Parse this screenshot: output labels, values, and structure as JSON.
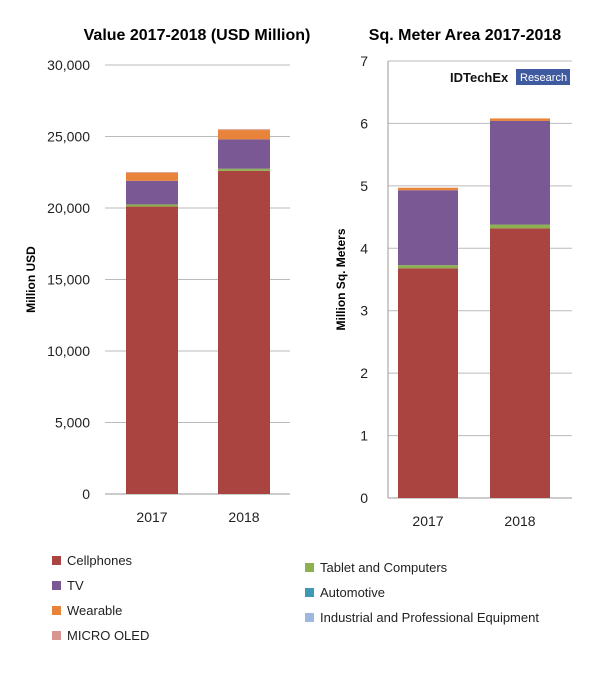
{
  "chart_data": [
    {
      "type": "bar",
      "stacked": true,
      "title": "Value 2017-2018 (USD Million)",
      "xlabel": "",
      "ylabel": "Million USD",
      "ylim": [
        0,
        30000
      ],
      "yticks": [
        "0",
        "5,000",
        "10,000",
        "15,000",
        "20,000",
        "25,000",
        "30,000"
      ],
      "categories": [
        "2017",
        "2018"
      ],
      "grid": true,
      "series": [
        {
          "name": "Cellphones",
          "values": [
            20100,
            22600
          ]
        },
        {
          "name": "Tablet and Computers",
          "values": [
            150,
            150
          ]
        },
        {
          "name": "Automotive",
          "values": [
            0,
            0
          ]
        },
        {
          "name": "Industrial and Professional Equipment",
          "values": [
            0,
            0
          ]
        },
        {
          "name": "TV",
          "values": [
            1650,
            2050
          ]
        },
        {
          "name": "Wearable",
          "values": [
            550,
            650
          ]
        },
        {
          "name": "MICRO OLED",
          "values": [
            60,
            60
          ]
        }
      ]
    },
    {
      "type": "bar",
      "stacked": true,
      "title": "Sq. Meter Area 2017-2018",
      "xlabel": "",
      "ylabel": "Million Sq. Meters",
      "ylim": [
        0,
        7
      ],
      "yticks": [
        "0",
        "1",
        "2",
        "3",
        "4",
        "5",
        "6",
        "7"
      ],
      "categories": [
        "2017",
        "2018"
      ],
      "grid": true,
      "series": [
        {
          "name": "Cellphones",
          "values": [
            3.68,
            4.32
          ]
        },
        {
          "name": "Tablet and Computers",
          "values": [
            0.05,
            0.06
          ]
        },
        {
          "name": "Automotive",
          "values": [
            0,
            0
          ]
        },
        {
          "name": "Industrial and Professional Equipment",
          "values": [
            0,
            0
          ]
        },
        {
          "name": "TV",
          "values": [
            1.2,
            1.66
          ]
        },
        {
          "name": "Wearable",
          "values": [
            0.04,
            0.04
          ]
        },
        {
          "name": "MICRO OLED",
          "values": [
            0,
            0
          ]
        }
      ]
    }
  ],
  "colors": {
    "Cellphones": "#a94441",
    "Tablet and Computers": "#8db050",
    "Automotive": "#3c9ab3",
    "Industrial and Professional Equipment": "#9db7de",
    "TV": "#7a5894",
    "Wearable": "#e8833a",
    "MICRO OLED": "#d9968f"
  },
  "legend": {
    "left": [
      "Cellphones",
      "TV",
      "Wearable",
      "MICRO OLED"
    ],
    "right": [
      "Tablet and Computers",
      "Automotive",
      "Industrial and Professional Equipment"
    ],
    "placement": "bottom"
  },
  "logo": {
    "text1": "IDTechEx",
    "text2": "Research"
  }
}
